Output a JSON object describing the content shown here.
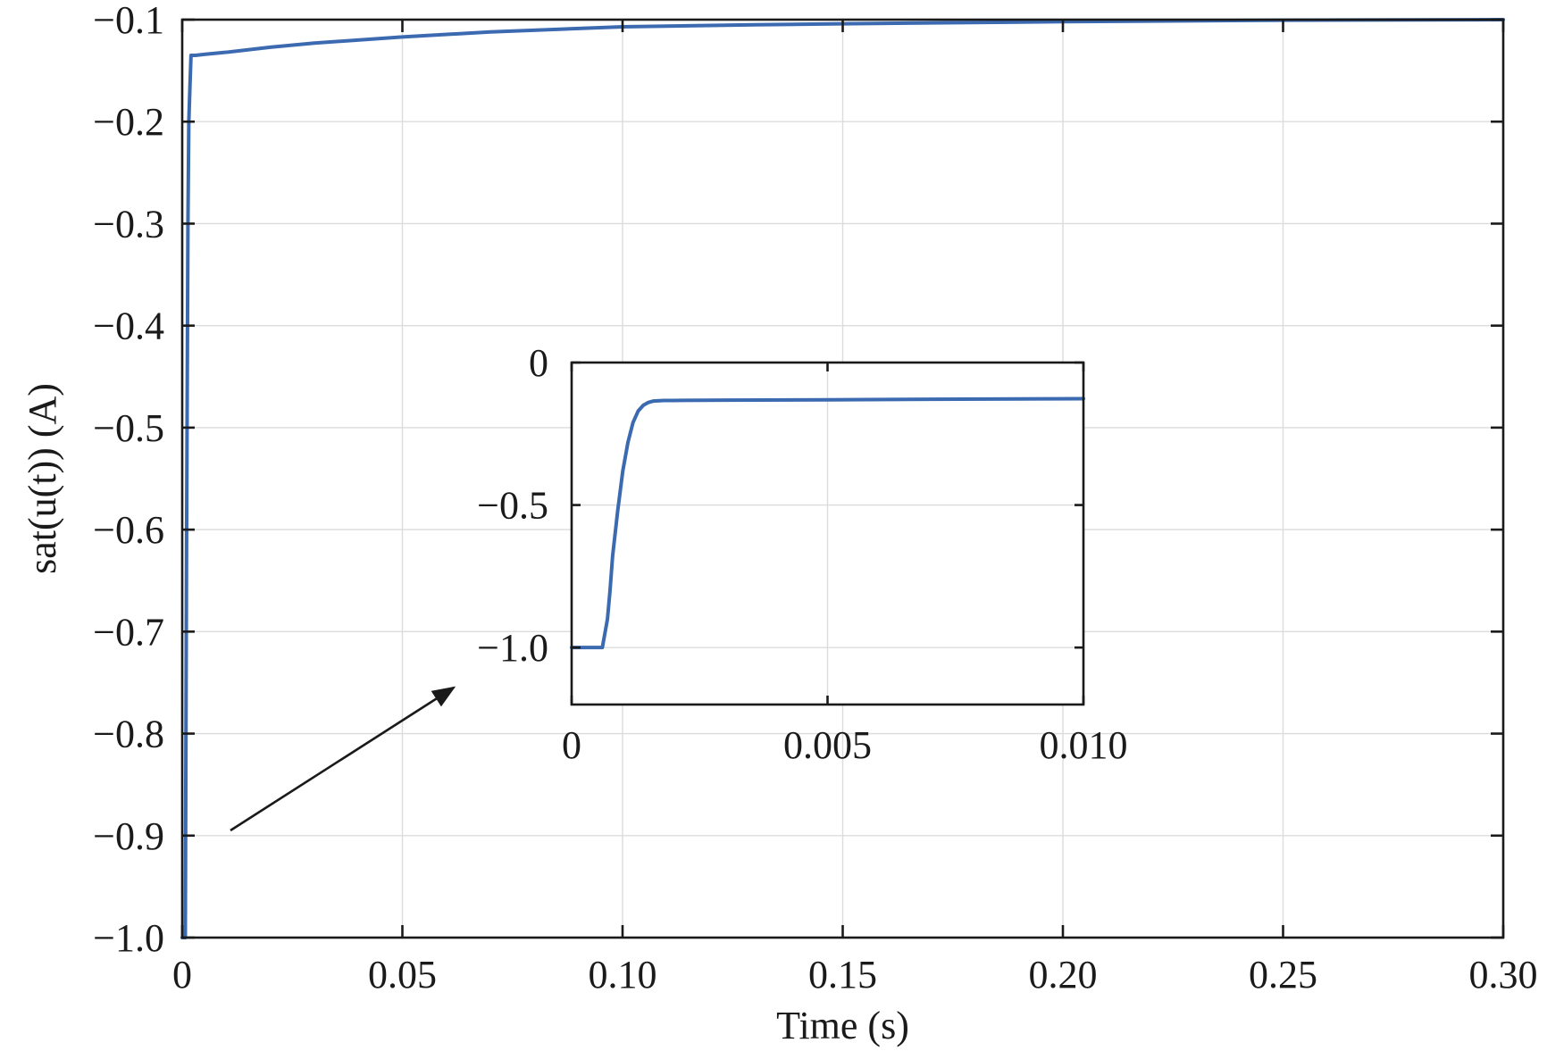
{
  "chart_data": [
    {
      "type": "line",
      "role": "main",
      "xlabel": "Time (s)",
      "ylabel": "sat(u(t)) (A)",
      "xlim": [
        0,
        0.3
      ],
      "ylim": [
        -1.0,
        -0.1
      ],
      "xticks": [
        0,
        0.05,
        0.1,
        0.15,
        0.2,
        0.25,
        0.3
      ],
      "xtick_labels": [
        "0",
        "0.05",
        "0.10",
        "0.15",
        "0.20",
        "0.25",
        "0.30"
      ],
      "yticks": [
        -1.0,
        -0.9,
        -0.8,
        -0.7,
        -0.6,
        -0.5,
        -0.4,
        -0.3,
        -0.2,
        -0.1
      ],
      "ytick_labels": [
        "−1.0",
        "−0.9",
        "−0.8",
        "−0.7",
        "−0.6",
        "−0.5",
        "−0.4",
        "−0.3",
        "−0.2",
        "−0.1"
      ],
      "grid": true,
      "series": [
        {
          "color": "#3c6ab0",
          "x": [
            0,
            0.0007,
            0.001,
            0.0013,
            0.0015,
            0.0018,
            0.002,
            0.003,
            0.005,
            0.01,
            0.02,
            0.03,
            0.05,
            0.07,
            0.1,
            0.13,
            0.15,
            0.2,
            0.25,
            0.3
          ],
          "y": [
            -1.0,
            -1.0,
            -0.6,
            -0.3,
            -0.2,
            -0.16,
            -0.135,
            -0.135,
            -0.134,
            -0.132,
            -0.127,
            -0.123,
            -0.117,
            -0.112,
            -0.107,
            -0.105,
            -0.104,
            -0.102,
            -0.1005,
            -0.1
          ]
        }
      ]
    },
    {
      "type": "line",
      "role": "inset",
      "xlim": [
        0,
        0.01
      ],
      "ylim": [
        -1.2,
        0
      ],
      "xticks": [
        0,
        0.005,
        0.01
      ],
      "xtick_labels": [
        "0",
        "0.005",
        "0.010"
      ],
      "yticks": [
        -1.0,
        -0.5,
        0
      ],
      "ytick_labels": [
        "−1.0",
        "−0.5",
        "0"
      ],
      "grid": true,
      "series": [
        {
          "color": "#3c6ab0",
          "x": [
            0,
            0.0006,
            0.0007,
            0.00075,
            0.0008,
            0.0009,
            0.001,
            0.0011,
            0.0012,
            0.0013,
            0.0014,
            0.0015,
            0.0016,
            0.0018,
            0.002,
            0.003,
            0.005,
            0.007,
            0.01
          ],
          "y": [
            -1.0,
            -1.0,
            -0.9,
            -0.8,
            -0.68,
            -0.52,
            -0.38,
            -0.28,
            -0.21,
            -0.17,
            -0.15,
            -0.14,
            -0.135,
            -0.133,
            -0.133,
            -0.132,
            -0.131,
            -0.129,
            -0.127
          ]
        }
      ]
    }
  ]
}
